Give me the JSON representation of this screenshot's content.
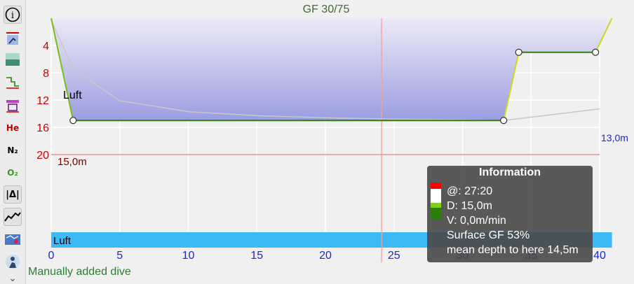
{
  "profile": {
    "gf_label": "GF 30/75",
    "gas_label": "Luft",
    "gas_bar_label": "Luft",
    "max_depth_label": "15,0m",
    "surface_label": "13,0m",
    "status_text": "Manually added dive"
  },
  "toolbar": {
    "items": [
      {
        "name": "info-icon",
        "label": "i"
      },
      {
        "name": "ascent-icon"
      },
      {
        "name": "ceiling-icon"
      },
      {
        "name": "calculated-ceiling-icon"
      },
      {
        "name": "tissue-icon"
      },
      {
        "name": "he-icon",
        "label": "He"
      },
      {
        "name": "n2-icon",
        "label": "N₂"
      },
      {
        "name": "o2-icon",
        "label": "O₂"
      },
      {
        "name": "ruler-icon",
        "label": "|Δ|"
      },
      {
        "name": "scale-icon"
      },
      {
        "name": "map-icon"
      },
      {
        "name": "diver-icon"
      },
      {
        "name": "more-icon",
        "label": "⌄"
      }
    ]
  },
  "info_box": {
    "title": "Information",
    "lines": [
      "@: 27:20",
      "D: 15,0m",
      "V: 0,0m/min",
      "Surface GF 53%",
      "mean depth to here 14,5m"
    ]
  },
  "chart_data": {
    "type": "line",
    "xlabel": "",
    "ylabel": "",
    "x_ticks": [
      0,
      5,
      10,
      15,
      20,
      25,
      30,
      35,
      40
    ],
    "y_ticks": [
      4,
      8,
      12,
      16,
      20
    ],
    "xlim": [
      0,
      40
    ],
    "ylim": [
      0,
      20
    ],
    "y_inverted": true,
    "series": [
      {
        "kind": "depth",
        "x": [
          0,
          1.6,
          33,
          34.1,
          39.7,
          40.9
        ],
        "y": [
          0,
          15,
          15,
          5,
          5,
          0
        ]
      },
      {
        "kind": "ceiling",
        "x": [
          0,
          1.6,
          5,
          10,
          15,
          20,
          25,
          30,
          33,
          40
        ],
        "y": [
          0.3,
          7.5,
          12.1,
          13.7,
          14.3,
          14.6,
          14.8,
          14.9,
          15.0,
          13.3
        ]
      }
    ],
    "markers": [
      {
        "x": 1.6,
        "y": 15
      },
      {
        "x": 33,
        "y": 15
      },
      {
        "x": 34.1,
        "y": 5
      },
      {
        "x": 39.7,
        "y": 5
      }
    ],
    "cursor_x": 24.1,
    "deco_limit_y": 20,
    "gas_bar": {
      "start": 0,
      "end": 40.9,
      "label": "Luft"
    },
    "colors": {
      "depth_fill_top": "#eceaf6",
      "depth_fill_bottom": "#9b9de2",
      "depth_line": "#76c21a",
      "ceiling_line": "#c8c8c8",
      "gas_bar": "#3dbaf5",
      "axis_x": "#1f28c4",
      "axis_y": "#cc0000",
      "gf": "#3d6b2e",
      "cursor": "#f0a0a0"
    }
  }
}
